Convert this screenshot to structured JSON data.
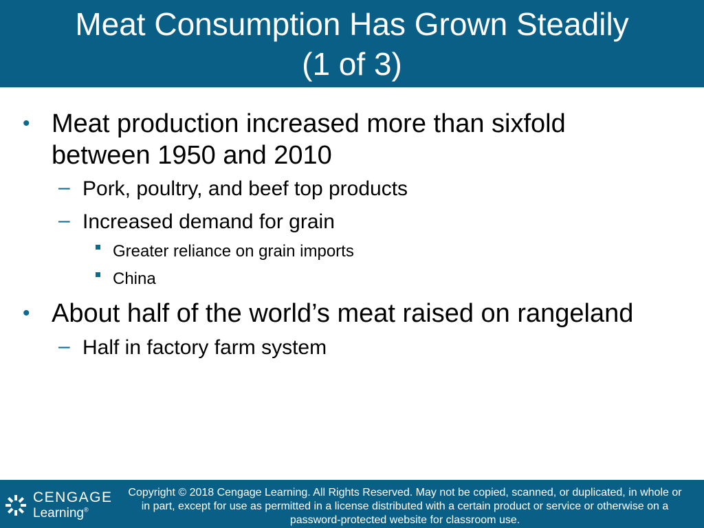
{
  "title": {
    "line1": "Meat Consumption Has Grown Steadily",
    "line2": "(1 of 3)"
  },
  "bullets": {
    "b1": {
      "line1": "Meat production increased more than sixfold",
      "line2": "between 1950 and 2010",
      "sub1": "Pork, poultry, and beef top products",
      "sub2": "Increased demand for grain",
      "subsub1": "Greater reliance on grain imports",
      "subsub2": "China"
    },
    "b2": {
      "text": "About half of the world’s meat raised on rangeland",
      "sub1": "Half in factory farm system"
    }
  },
  "footer": {
    "logo_top": "CENGAGE",
    "logo_bottom": "Learning",
    "registered_mark": "®",
    "copyright_line1": "Copyright © 2018 Cengage Learning. All Rights Reserved. May not be copied, scanned, or duplicated, in whole or",
    "copyright_line2": "in part, except for use as permitted in a license distributed with a certain product or service or otherwise on a",
    "copyright_line3": "password-protected website for classroom use."
  },
  "symbols": {
    "bullet": "•",
    "dash": "–"
  },
  "colors": {
    "brand_blue": "#0a5f86",
    "bullet_blue": "#0a6b8f",
    "text": "#000000",
    "background": "#ffffff"
  },
  "icons": {
    "logo": "cengage-starburst-icon",
    "level1_marker": "bullet-dot",
    "level2_marker": "en-dash",
    "level3_marker": "square-bullet"
  }
}
